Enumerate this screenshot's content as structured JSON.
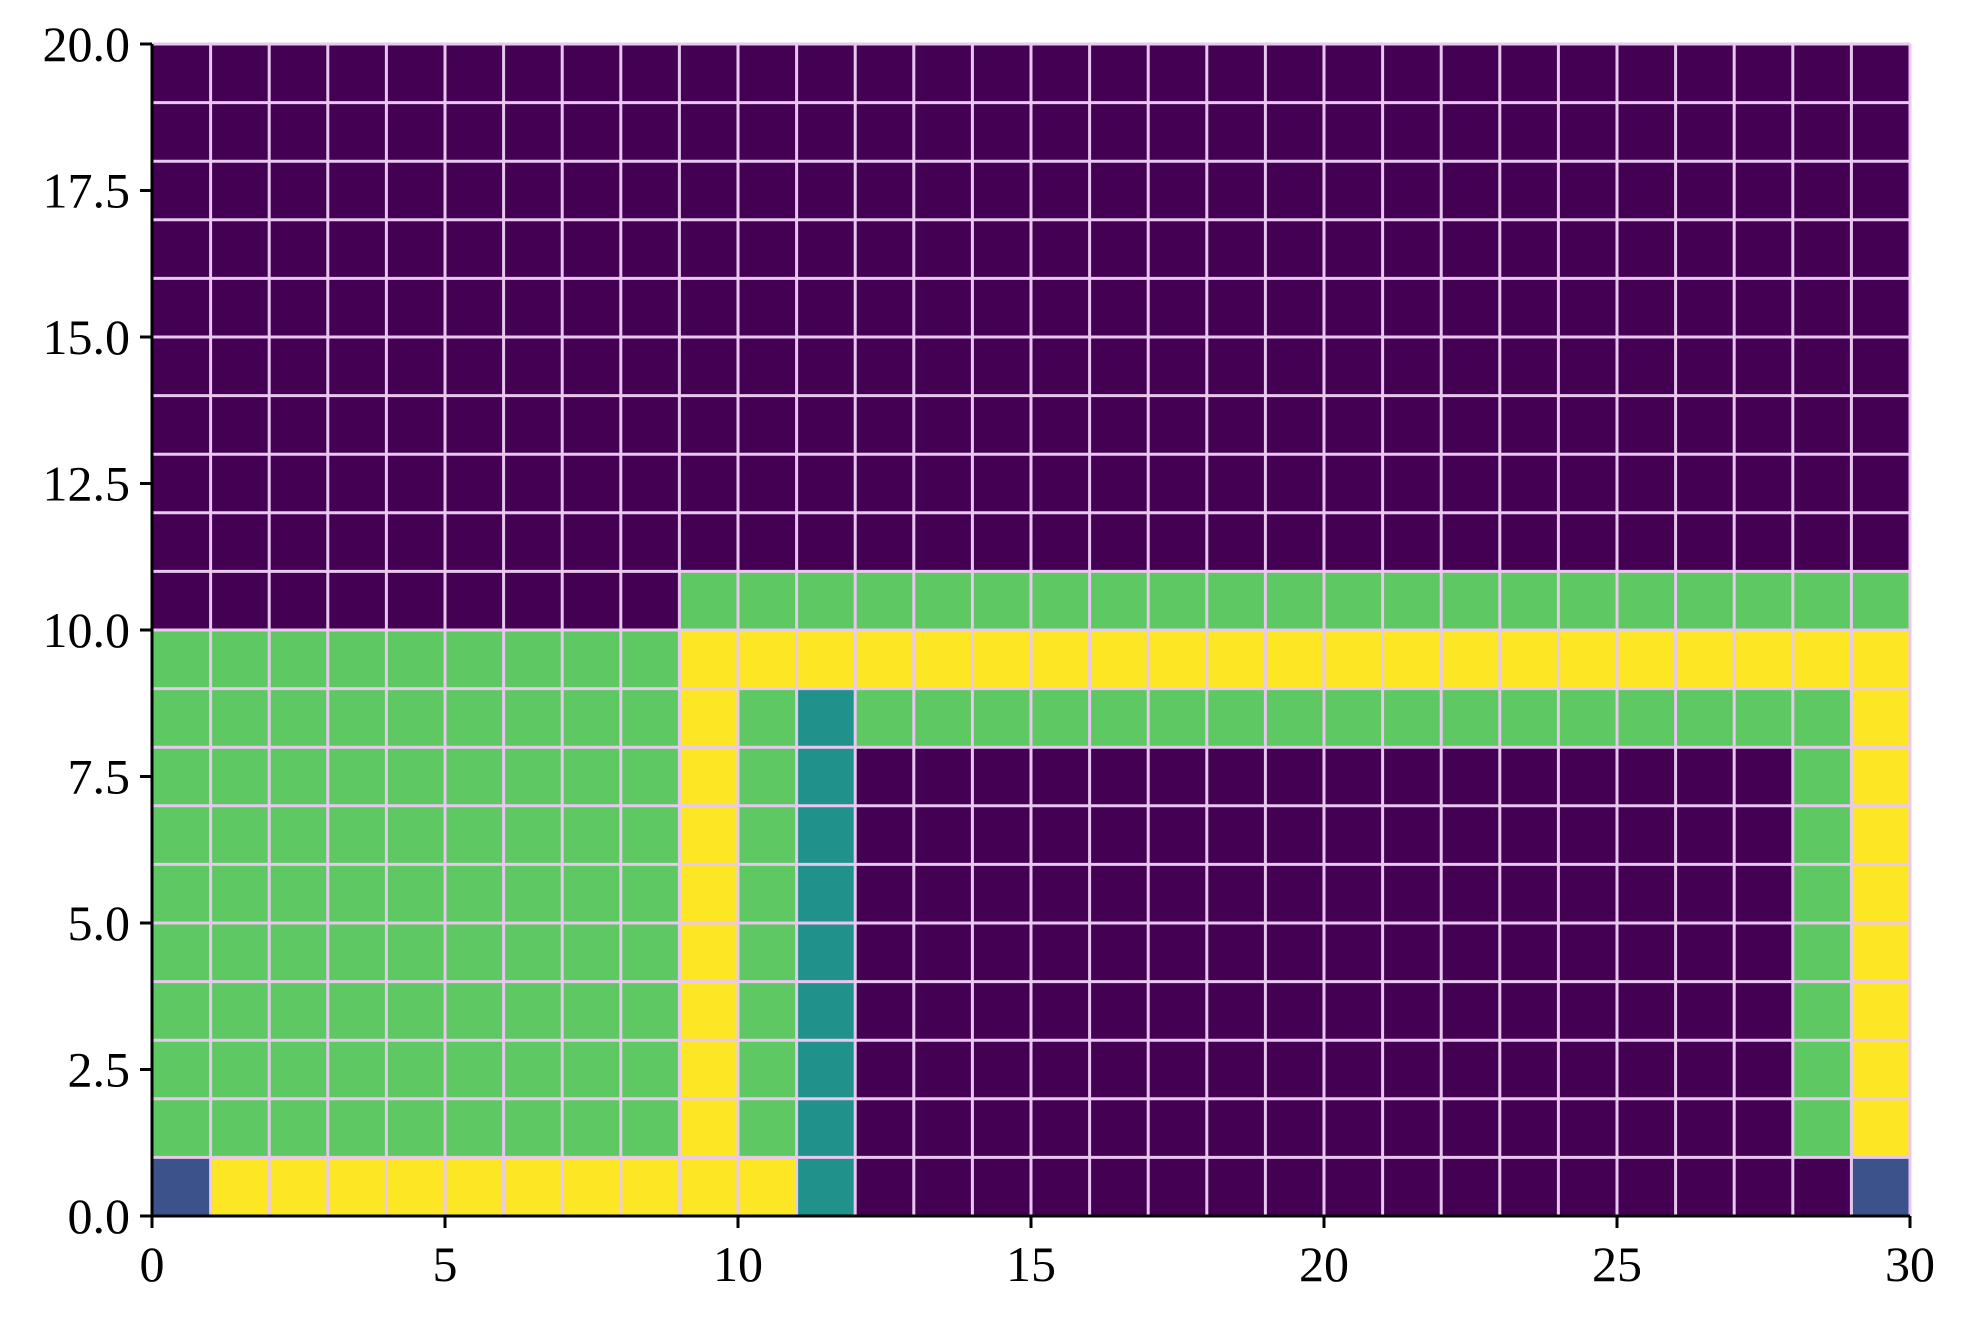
{
  "chart_data": {
    "type": "heatmap",
    "title": "",
    "xlabel": "",
    "ylabel": "",
    "xlim": [
      0,
      30
    ],
    "ylim": [
      0,
      20
    ],
    "x_ticks": [
      "0",
      "5",
      "10",
      "15",
      "20",
      "25",
      "30"
    ],
    "y_ticks": [
      "0.0",
      "2.5",
      "5.0",
      "7.5",
      "10.0",
      "12.5",
      "15.0",
      "17.5",
      "20.0"
    ],
    "grid": true,
    "grid_color": "#e8c8ee",
    "colorbar": false,
    "palette": {
      "0": "#440154",
      "1": "#3b528b",
      "2": "#21918c",
      "3": "#5ec962",
      "4": "#fde725"
    },
    "rows_bottom_to_top": [
      "144444444442000000000000000001",
      "333333333432000000000000000034",
      "333333333432000000000000000034",
      "333333333432000000000000000034",
      "333333333432000000000000000034",
      "333333333432000000000000000034",
      "333333333432000000000000000034",
      "333333333432000000000000000034",
      "333333333432333333333333333334",
      "333333333444444444444444444444",
      "000000000333333333333333333333",
      "000000000000000000000000000000",
      "000000000000000000000000000000",
      "000000000000000000000000000000",
      "000000000000000000000000000000",
      "000000000000000000000000000000",
      "000000000000000000000000000000",
      "000000000000000000000000000000",
      "000000000000000000000000000000",
      "000000000000000000000000000000"
    ]
  }
}
